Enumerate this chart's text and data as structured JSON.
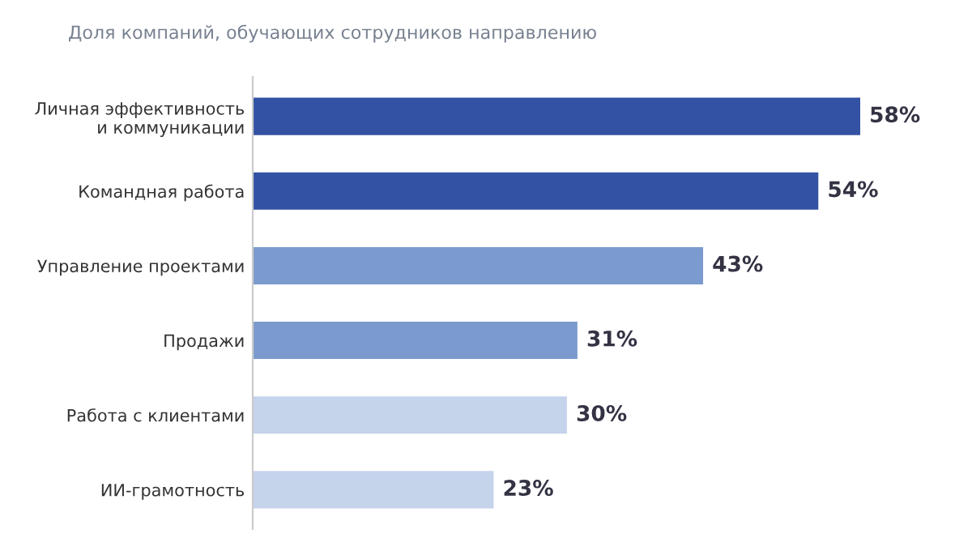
{
  "chart_data": {
    "type": "bar",
    "orientation": "horizontal",
    "subtitle": "Доля компаний, обучающих сотрудников направлению",
    "categories": [
      "Личная эффективность\nи коммуникации",
      "Командная работа",
      "Управление проектами",
      "Продажи",
      "Работа с клиентами",
      "ИИ-грамотность"
    ],
    "values": [
      58,
      54,
      43,
      31,
      30,
      23
    ],
    "colors": [
      "#3352a3",
      "#3352a3",
      "#7b9acd",
      "#7b9acd",
      "#c5d3eb",
      "#c5d3eb"
    ],
    "value_labels": [
      "58%",
      "54%",
      "43%",
      "31%",
      "30%",
      "23%"
    ]
  }
}
